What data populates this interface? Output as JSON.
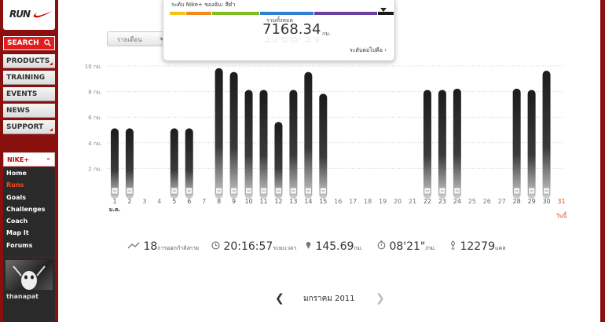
{
  "sidebar": {
    "logo_text": "RUN",
    "search_label": "SEARCH",
    "nav": [
      "PRODUCTS",
      "TRAINING",
      "EVENTS",
      "NEWS",
      "SUPPORT"
    ],
    "nikeplus_label": "NIKE+",
    "nikeplus_toggle": "–",
    "submenu": [
      "Home",
      "Runs",
      "Goals",
      "Challenges",
      "Coach",
      "Map It",
      "Forums"
    ],
    "active_submenu": "Runs",
    "username": "thanapat"
  },
  "view_select": {
    "selected": "รายเดือน"
  },
  "level_popup": {
    "label": "ระดับ Nike+ ของฉัน: สีดำ",
    "bands": [
      "#f3c21c",
      "#f08a1c",
      "#7fbf22",
      "#2d7fd3",
      "#6a3fa3",
      "#1a1a1a"
    ],
    "total_label": "รวมทั้งหมด",
    "total_value": "7168.34",
    "total_unit": "กม.",
    "next_level_link": "ระดับต่อไปคือ"
  },
  "chart_data": {
    "type": "bar",
    "yticks": [
      "10 กม.",
      "8 กม.",
      "6 กม.",
      "4 กม.",
      "2 กม."
    ],
    "ylim": [
      0,
      10
    ],
    "categories": [
      "1",
      "2",
      "3",
      "4",
      "5",
      "6",
      "7",
      "8",
      "9",
      "10",
      "11",
      "12",
      "13",
      "14",
      "15",
      "16",
      "17",
      "18",
      "19",
      "20",
      "21",
      "22",
      "23",
      "24",
      "25",
      "26",
      "27",
      "28",
      "29",
      "30",
      "31"
    ],
    "values": [
      5.5,
      5.5,
      0,
      0,
      5.5,
      5.5,
      0,
      10.2,
      9.9,
      8.5,
      8.5,
      6.0,
      8.5,
      9.9,
      8.2,
      0,
      0,
      0,
      0,
      0,
      0,
      8.5,
      8.5,
      8.6,
      0,
      0,
      0,
      8.6,
      8.5,
      10.0,
      0
    ],
    "first_day_sublabel": "ม.ค.",
    "last_day_sublabel": "วันนี้",
    "highlight_day": "31",
    "bar_color": "#2f2f2f",
    "highlight_color": "#e0451a"
  },
  "stats": {
    "runs_value": "18",
    "runs_label": "การออกกำลังกาย",
    "time_value": "20:16:57",
    "time_label": "ระยะเวลา",
    "distance_value": "145.69",
    "distance_label": "กม.",
    "pace_value": "08'21\"",
    "pace_label": "/กม.",
    "calories_value": "12279",
    "calories_label": "แคล"
  },
  "month_nav": {
    "prev": "❮",
    "label": "มกราคม 2011",
    "next": "❯"
  }
}
